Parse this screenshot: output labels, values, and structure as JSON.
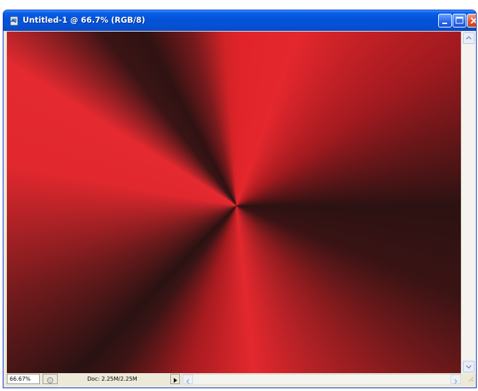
{
  "window": {
    "title": "Untitled-1 @ 66.7% (RGB/8)",
    "titlebar_color": "#0453d6",
    "close_color": "#e0552e"
  },
  "titlebar_buttons": {
    "minimize_icon": "minimize-icon",
    "maximize_icon": "maximize-icon",
    "close_icon": "close-icon"
  },
  "canvas": {
    "content": "angle-gradient-red-black",
    "colors": {
      "red": "#e2242a",
      "dark": "#2c1212"
    }
  },
  "statusbar": {
    "zoom_value": "66.67%",
    "doc_info": "Doc: 2.25M/2.25M",
    "arrow_icon": "right-triangle-icon"
  }
}
